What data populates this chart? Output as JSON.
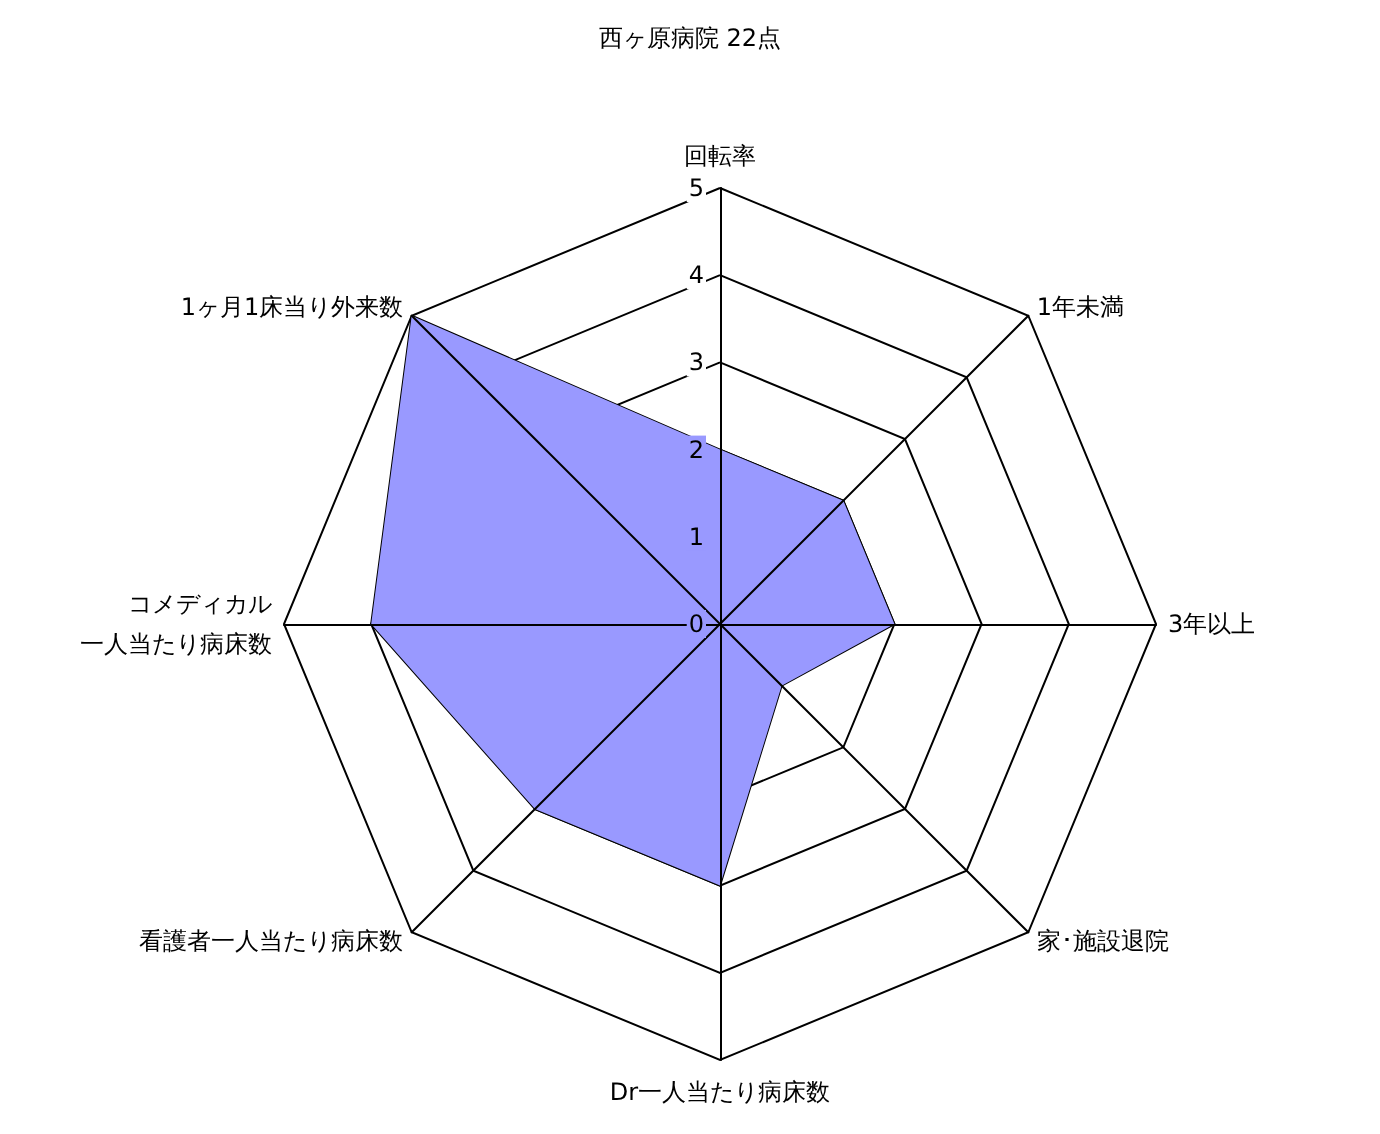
{
  "chart_data": {
    "type": "radar",
    "title": "西ヶ原病院 22点",
    "categories": [
      "回転率",
      "1年未満",
      "3年以上",
      "家･施設退院",
      "Dr一人当たり病床数",
      "看護者一人当たり病床数",
      "コメディカル一人当たり病床数",
      "1ヶ月1床当り外来数"
    ],
    "series": [
      {
        "color": "#9999ff",
        "values": [
          2,
          2,
          2,
          1,
          3,
          3,
          4,
          5
        ]
      }
    ],
    "ylim": [
      0,
      5
    ],
    "yticks": [
      0,
      1,
      2,
      3,
      4,
      5
    ],
    "grid": true,
    "marker": "none"
  }
}
